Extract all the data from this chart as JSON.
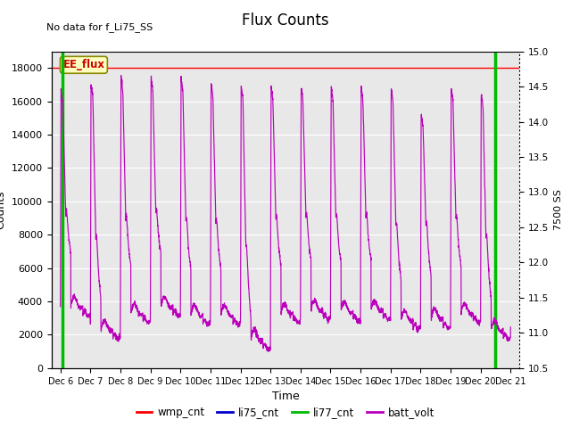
{
  "title": "Flux Counts",
  "subtitle": "No data for f_Li75_SS",
  "xlabel": "Time",
  "ylabel_left": "Counts",
  "ylabel_right": "7500 SS",
  "annotation": "EE_flux",
  "ylim_left": [
    0,
    19000
  ],
  "ylim_right": [
    10.5,
    15.0
  ],
  "yticks_left": [
    0,
    2000,
    4000,
    6000,
    8000,
    10000,
    12000,
    14000,
    16000,
    18000
  ],
  "yticks_right": [
    10.5,
    11.0,
    11.5,
    12.0,
    12.5,
    13.0,
    13.5,
    14.0,
    14.5,
    15.0
  ],
  "xtick_labels": [
    "Dec 6",
    "Dec 7",
    "Dec 8",
    "Dec 9",
    "Dec 10",
    "Dec 11",
    "Dec 12",
    "Dec 13",
    "Dec 14",
    "Dec 15",
    "Dec 16",
    "Dec 17",
    "Dec 18",
    "Dec 19",
    "Dec 20",
    "Dec 21"
  ],
  "wmp_cnt_color": "#ff0000",
  "li75_cnt_color": "#0000cc",
  "li77_cnt_color": "#00bb00",
  "batt_volt_color": "#bb00bb",
  "bg_color": "#e8e8e8",
  "wmp_level": 18000,
  "figsize": [
    6.4,
    4.8
  ],
  "dpi": 100
}
